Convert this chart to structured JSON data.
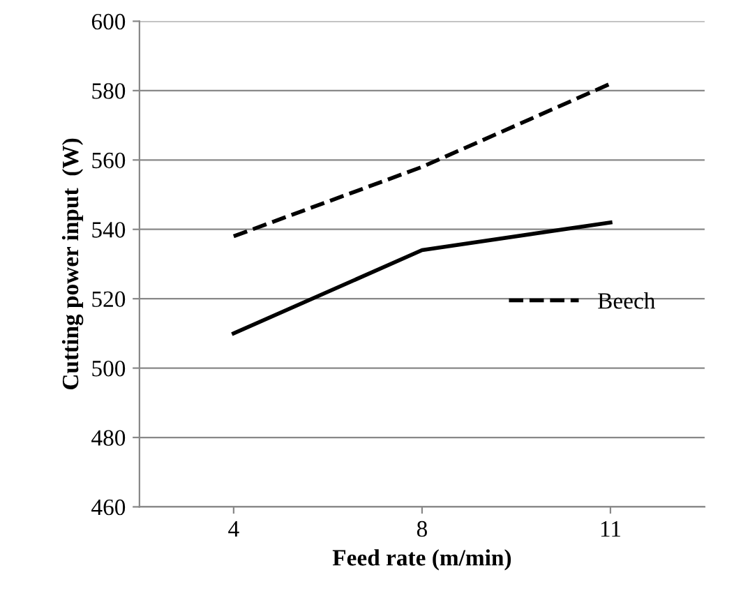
{
  "chart_data": {
    "type": "line",
    "xlabel": "Feed rate (m/min)",
    "ylabel": "Cutting power input  (W)",
    "categories": [
      "4",
      "8",
      "11"
    ],
    "series": [
      {
        "color": "#000000",
        "values": [
          510,
          534,
          542
        ],
        "line_style": "solid"
      },
      {
        "name": "Beech",
        "color": "#000000",
        "values": [
          538,
          558,
          582
        ],
        "line_style": "dashed"
      }
    ],
    "ylim": [
      460,
      600
    ],
    "yticks": [
      460,
      480,
      500,
      520,
      540,
      560,
      580,
      600
    ],
    "grid": "y",
    "legend": "right",
    "marker": "none"
  }
}
